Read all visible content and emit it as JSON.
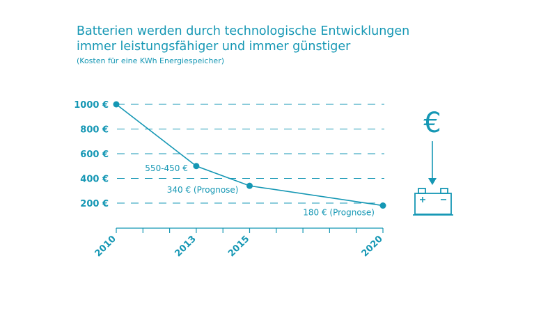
{
  "header": {
    "title_line1": "Batterien werden durch technologische Entwicklungen",
    "title_line2": "immer leistungsfähiger und immer günstiger",
    "subtitle": "(Kosten für eine KWh Energiespeicher)"
  },
  "colors": {
    "accent": "#1597b4"
  },
  "chart_data": {
    "type": "line",
    "title": "Batterien werden durch technologische Entwicklungen immer leistungsfähiger und immer günstiger",
    "subtitle": "(Kosten für eine KWh Energiespeicher)",
    "xlabel": "",
    "ylabel": "",
    "xlim": [
      2010,
      2020
    ],
    "ylim": [
      200,
      1000
    ],
    "y_ticks": [
      1000,
      800,
      600,
      400,
      200
    ],
    "y_tick_labels": [
      "1000 €",
      "800 €",
      "600 €",
      "400 €",
      "200 €"
    ],
    "x_ticks": [
      2010,
      2013,
      2015,
      2020
    ],
    "x_tick_labels": [
      "2010",
      "2013",
      "2015",
      "2020"
    ],
    "grid": "horizontal dashed",
    "series": [
      {
        "x": [
          2010,
          2013,
          2015,
          2020
        ],
        "values": [
          1000,
          500,
          340,
          180
        ],
        "labels": [
          "",
          "550-450 €",
          "340 € (Prognose)",
          "180 € (Prognose)"
        ]
      }
    ]
  },
  "icons": {
    "currency": "euro-icon",
    "arrow": "arrow-down-icon",
    "battery": "battery-icon"
  },
  "euro_symbol": "€"
}
